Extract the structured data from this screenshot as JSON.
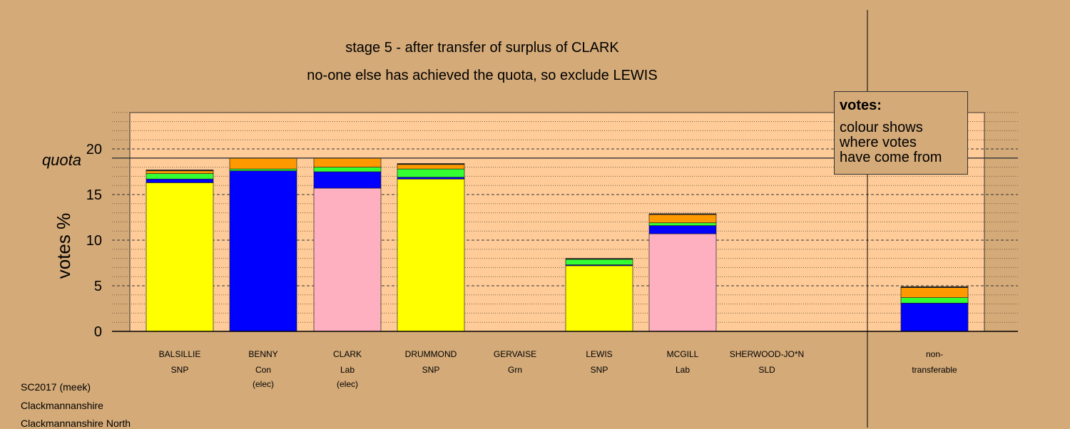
{
  "chart_data": {
    "type": "bar",
    "title": "stage 5 - after transfer of surplus of CLARK",
    "subtitle": "no-one else has achieved the quota, so exclude LEWIS",
    "ylabel": "votes %",
    "xlabel": "",
    "ylim": [
      0,
      24
    ],
    "yticks": [
      0,
      5,
      10,
      15,
      20
    ],
    "quota": 19.0,
    "quota_label": "quota",
    "grid": true,
    "colors": {
      "yellow": "#ffff00",
      "blue": "#0000ff",
      "pink": "#ffb0c0",
      "green": "#33ff33",
      "orange": "#ff9900",
      "dark": "#222222",
      "plot_bg": "#ffcc99",
      "page_bg": "#d4aa78"
    },
    "candidates": [
      {
        "name": "BALSILLIE",
        "party": "SNP",
        "status": "",
        "segments": [
          {
            "color": "yellow",
            "value": 16.3
          },
          {
            "color": "blue",
            "value": 0.4
          },
          {
            "color": "green",
            "value": 0.6
          },
          {
            "color": "orange",
            "value": 0.3
          },
          {
            "color": "dark",
            "value": 0.1
          }
        ]
      },
      {
        "name": "BENNY",
        "party": "Con",
        "status": "(elec)",
        "segments": [
          {
            "color": "blue",
            "value": 17.6
          },
          {
            "color": "green",
            "value": 0.2
          },
          {
            "color": "orange",
            "value": 1.2
          }
        ]
      },
      {
        "name": "CLARK",
        "party": "Lab",
        "status": "(elec)",
        "segments": [
          {
            "color": "pink",
            "value": 15.7
          },
          {
            "color": "blue",
            "value": 1.8
          },
          {
            "color": "green",
            "value": 0.5
          },
          {
            "color": "orange",
            "value": 1.0
          }
        ]
      },
      {
        "name": "DRUMMOND",
        "party": "SNP",
        "status": "",
        "segments": [
          {
            "color": "yellow",
            "value": 16.7
          },
          {
            "color": "blue",
            "value": 0.2
          },
          {
            "color": "green",
            "value": 0.9
          },
          {
            "color": "orange",
            "value": 0.5
          },
          {
            "color": "dark",
            "value": 0.1
          }
        ]
      },
      {
        "name": "GERVAISE",
        "party": "Grn",
        "status": "",
        "segments": []
      },
      {
        "name": "LEWIS",
        "party": "SNP",
        "status": "",
        "segments": [
          {
            "color": "yellow",
            "value": 7.2
          },
          {
            "color": "blue",
            "value": 0.1
          },
          {
            "color": "green",
            "value": 0.6
          },
          {
            "color": "dark",
            "value": 0.1
          }
        ]
      },
      {
        "name": "MCGILL",
        "party": "Lab",
        "status": "",
        "segments": [
          {
            "color": "pink",
            "value": 10.7
          },
          {
            "color": "blue",
            "value": 0.9
          },
          {
            "color": "green",
            "value": 0.3
          },
          {
            "color": "orange",
            "value": 0.9
          },
          {
            "color": "dark",
            "value": 0.1
          }
        ]
      },
      {
        "name": "SHERWOOD-JO*N",
        "party": "SLD",
        "status": "",
        "segments": []
      }
    ],
    "nontransferable": {
      "label_line1": "non-",
      "label_line2": "transferable",
      "segments": [
        {
          "color": "blue",
          "value": 3.1
        },
        {
          "color": "green",
          "value": 0.6
        },
        {
          "color": "orange",
          "value": 1.1
        },
        {
          "color": "dark",
          "value": 0.1
        }
      ]
    }
  },
  "legend": {
    "title": "votes:",
    "lines": [
      "colour shows",
      "where votes",
      "have come from"
    ]
  },
  "footer": [
    "SC2017 (meek)",
    "Clackmannanshire",
    "Clackmannanshire North"
  ]
}
